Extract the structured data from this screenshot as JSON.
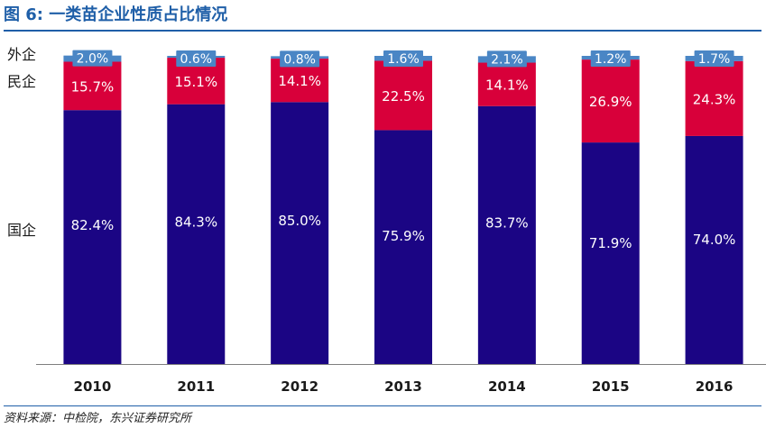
{
  "figure": {
    "title": "图 6: 一类苗企业性质占比情况",
    "source": "资料来源：中检院，东兴证券研究所"
  },
  "chart_data": {
    "type": "bar",
    "stacked": true,
    "categories": [
      "2010",
      "2011",
      "2012",
      "2013",
      "2014",
      "2015",
      "2016"
    ],
    "series": [
      {
        "name": "国企",
        "values": [
          82.4,
          84.3,
          85.0,
          75.9,
          83.7,
          71.9,
          74.0
        ],
        "labels": [
          "82.4%",
          "84.3%",
          "85.0%",
          "75.9%",
          "83.7%",
          "71.9%",
          "74.0%"
        ],
        "color": "#1b0584"
      },
      {
        "name": "民企",
        "values": [
          15.7,
          15.1,
          14.1,
          22.5,
          14.1,
          26.9,
          24.3
        ],
        "labels": [
          "15.7%",
          "15.1%",
          "14.1%",
          "22.5%",
          "14.1%",
          "26.9%",
          "24.3%"
        ],
        "color": "#d8003a"
      },
      {
        "name": "外企",
        "values": [
          2.0,
          0.6,
          0.8,
          1.6,
          2.1,
          1.2,
          1.7
        ],
        "labels": [
          "2.0%",
          "0.6%",
          "0.8%",
          "1.6%",
          "2.1%",
          "1.2%",
          "1.7%"
        ],
        "color": "#4a86c5"
      }
    ],
    "ylim": [
      0,
      100
    ],
    "legend": "left",
    "grid": false
  }
}
